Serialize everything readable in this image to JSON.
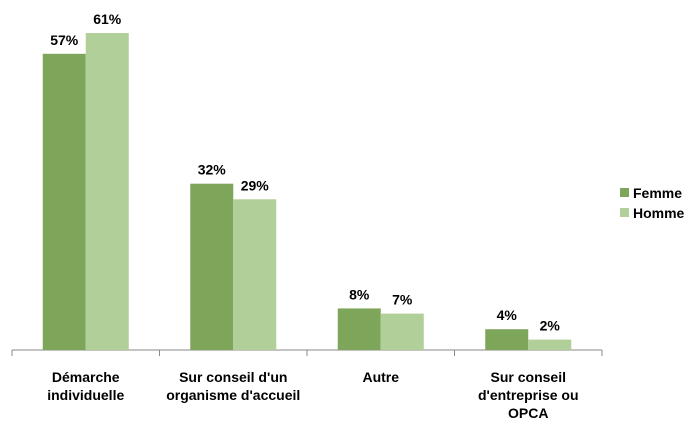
{
  "chart_data": {
    "type": "bar",
    "categories": [
      "Démarche individuelle",
      "Sur conseil d'un organisme d'accueil",
      "Autre",
      "Sur conseil d'entreprise ou OPCA"
    ],
    "series": [
      {
        "name": "Femme",
        "color": "#7ea65a",
        "values": [
          57,
          32,
          8,
          4
        ],
        "value_labels": [
          "57%",
          "32%",
          "8%",
          "4%"
        ]
      },
      {
        "name": "Homme",
        "color": "#b1cf99",
        "values": [
          61,
          29,
          7,
          2
        ],
        "value_labels": [
          "61%",
          "29%",
          "7%",
          "2%"
        ]
      }
    ],
    "legend": "right"
  }
}
